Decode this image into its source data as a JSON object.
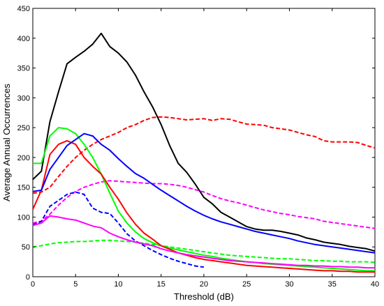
{
  "chart_data": {
    "type": "line",
    "xlabel": "Threshold (dB)",
    "ylabel": "Average Annual Occurrences",
    "xlim": [
      0,
      40
    ],
    "ylim": [
      0,
      450
    ],
    "xticks": [
      0,
      5,
      10,
      15,
      20,
      25,
      30,
      35,
      40
    ],
    "yticks": [
      0,
      50,
      100,
      150,
      200,
      250,
      300,
      350,
      400,
      450
    ],
    "grid": false,
    "legend": "none",
    "series": [
      {
        "color": "#000000",
        "style": "solid",
        "x": [
          0,
          1,
          2,
          3,
          4,
          5,
          6,
          7,
          8,
          9,
          10,
          11,
          12,
          13,
          14,
          15,
          16,
          17,
          18,
          19,
          20,
          21,
          22,
          23,
          24,
          25,
          26,
          27,
          28,
          29,
          30,
          31,
          32,
          33,
          34,
          35,
          36,
          37,
          38,
          39,
          40
        ],
        "y": [
          163,
          177,
          260,
          310,
          357,
          368,
          378,
          390,
          408,
          386,
          375,
          360,
          338,
          310,
          285,
          255,
          220,
          190,
          175,
          155,
          133,
          122,
          108,
          100,
          92,
          84,
          80,
          78,
          78,
          76,
          73,
          70,
          65,
          62,
          58,
          56,
          54,
          51,
          49,
          47,
          43
        ]
      },
      {
        "color": "#ff0000",
        "style": "dashed",
        "x": [
          0,
          1,
          2,
          3,
          4,
          5,
          6,
          7,
          8,
          9,
          10,
          11,
          12,
          13,
          14,
          15,
          16,
          17,
          18,
          19,
          20,
          21,
          22,
          23,
          24,
          25,
          26,
          27,
          28,
          29,
          30,
          31,
          32,
          33,
          34,
          35,
          36,
          37,
          38,
          39,
          40
        ],
        "y": [
          140,
          142,
          150,
          168,
          185,
          200,
          212,
          222,
          230,
          236,
          242,
          250,
          255,
          262,
          267,
          268,
          267,
          265,
          263,
          264,
          265,
          262,
          265,
          264,
          260,
          256,
          255,
          254,
          250,
          248,
          246,
          242,
          238,
          235,
          228,
          226,
          226,
          226,
          225,
          220,
          216
        ]
      },
      {
        "color": "#ff00ff",
        "style": "dashed",
        "x": [
          0,
          1,
          2,
          3,
          4,
          5,
          6,
          7,
          8,
          9,
          10,
          11,
          12,
          13,
          14,
          15,
          16,
          17,
          18,
          19,
          20,
          21,
          22,
          23,
          24,
          25,
          26,
          27,
          28,
          29,
          30,
          31,
          32,
          33,
          34,
          35,
          36,
          37,
          38,
          39,
          40
        ],
        "y": [
          90,
          93,
          105,
          120,
          133,
          143,
          150,
          155,
          159,
          161,
          160,
          159,
          158,
          157,
          156,
          156,
          155,
          153,
          150,
          146,
          142,
          136,
          131,
          127,
          124,
          120,
          116,
          112,
          109,
          106,
          104,
          101,
          99,
          97,
          93,
          91,
          89,
          87,
          85,
          83,
          81
        ]
      },
      {
        "color": "#0000ff",
        "style": "dashed",
        "x": [
          0,
          1,
          2,
          3,
          4,
          5,
          6,
          7,
          8,
          9,
          10,
          11,
          12,
          13,
          14,
          15,
          16,
          17,
          18,
          19,
          20
        ],
        "y": [
          87,
          93,
          118,
          128,
          138,
          142,
          138,
          115,
          108,
          106,
          90,
          72,
          60,
          52,
          44,
          37,
          31,
          26,
          22,
          18,
          16
        ]
      },
      {
        "color": "#00ff00",
        "style": "dashed",
        "x": [
          0,
          1,
          2,
          3,
          4,
          5,
          6,
          7,
          8,
          9,
          10,
          11,
          12,
          13,
          14,
          15,
          16,
          17,
          18,
          19,
          20,
          21,
          22,
          23,
          24,
          25,
          26,
          27,
          28,
          29,
          30,
          31,
          32,
          33,
          34,
          35,
          36,
          37,
          38,
          39,
          40
        ],
        "y": [
          50,
          52,
          55,
          57,
          58,
          59,
          59,
          60,
          61,
          61,
          60,
          59,
          58,
          56,
          54,
          52,
          50,
          48,
          46,
          44,
          42,
          40,
          38,
          36,
          35,
          34,
          33,
          32,
          31,
          30,
          30,
          29,
          28,
          27,
          27,
          26,
          26,
          25,
          25,
          25,
          24
        ]
      },
      {
        "color": "#00ff00",
        "style": "solid",
        "x": [
          0,
          1,
          2,
          3,
          4,
          5,
          6,
          7,
          8,
          9,
          10,
          11,
          12,
          13,
          14,
          15,
          16,
          17,
          18,
          19,
          20,
          21,
          22,
          23,
          24,
          25,
          26,
          27,
          28,
          29,
          30,
          31,
          32,
          33,
          34,
          35,
          36,
          37,
          38,
          39,
          40
        ],
        "y": [
          190,
          190,
          236,
          250,
          248,
          240,
          222,
          200,
          172,
          140,
          110,
          90,
          75,
          64,
          57,
          52,
          48,
          45,
          42,
          39,
          36,
          34,
          31,
          29,
          27,
          25,
          24,
          22,
          21,
          20,
          19,
          18,
          17,
          16,
          15,
          14,
          13,
          12,
          11,
          10,
          10
        ]
      },
      {
        "color": "#ff0000",
        "style": "solid",
        "x": [
          0,
          1,
          2,
          3,
          4,
          5,
          6,
          7,
          8,
          9,
          10,
          11,
          12,
          13,
          14,
          15,
          16,
          17,
          18,
          19,
          20,
          21,
          22,
          23,
          24,
          25,
          26,
          27,
          28,
          29,
          30,
          31,
          32,
          33,
          34,
          35,
          36,
          37,
          38,
          39,
          40
        ],
        "y": [
          113,
          145,
          205,
          222,
          228,
          222,
          200,
          185,
          172,
          150,
          130,
          107,
          88,
          73,
          63,
          52,
          46,
          40,
          36,
          32,
          29,
          27,
          25,
          23,
          21,
          19,
          18,
          17,
          16,
          15,
          14,
          13,
          12,
          11,
          10,
          10,
          9,
          9,
          8,
          8,
          8
        ]
      },
      {
        "color": "#0000ff",
        "style": "solid",
        "x": [
          0,
          1,
          2,
          3,
          4,
          5,
          6,
          7,
          8,
          9,
          10,
          11,
          12,
          13,
          14,
          15,
          16,
          17,
          18,
          19,
          20,
          21,
          22,
          23,
          24,
          25,
          26,
          27,
          28,
          29,
          30,
          31,
          32,
          33,
          34,
          35,
          36,
          37,
          38,
          39,
          40
        ],
        "y": [
          143,
          145,
          180,
          200,
          220,
          230,
          240,
          236,
          222,
          212,
          198,
          185,
          173,
          165,
          155,
          145,
          136,
          127,
          118,
          110,
          103,
          97,
          92,
          88,
          84,
          80,
          76,
          73,
          70,
          67,
          64,
          60,
          57,
          54,
          52,
          50,
          48,
          46,
          44,
          42,
          40
        ]
      },
      {
        "color": "#ff00ff",
        "style": "solid",
        "x": [
          0,
          1,
          2,
          3,
          4,
          5,
          6,
          7,
          8,
          9,
          10,
          11,
          12,
          13,
          14,
          15,
          16,
          17,
          18,
          19,
          20,
          21,
          22,
          23,
          24,
          25,
          26,
          27,
          28,
          29,
          30,
          31,
          32,
          33,
          34,
          35,
          36,
          37,
          38,
          39,
          40
        ],
        "y": [
          86,
          90,
          102,
          100,
          97,
          95,
          90,
          85,
          82,
          73,
          67,
          62,
          58,
          55,
          52,
          47,
          43,
          40,
          37,
          35,
          33,
          31,
          29,
          27,
          26,
          25,
          24,
          23,
          22,
          21,
          20,
          19,
          19,
          18,
          18,
          17,
          17,
          16,
          16,
          15,
          15
        ]
      }
    ]
  }
}
